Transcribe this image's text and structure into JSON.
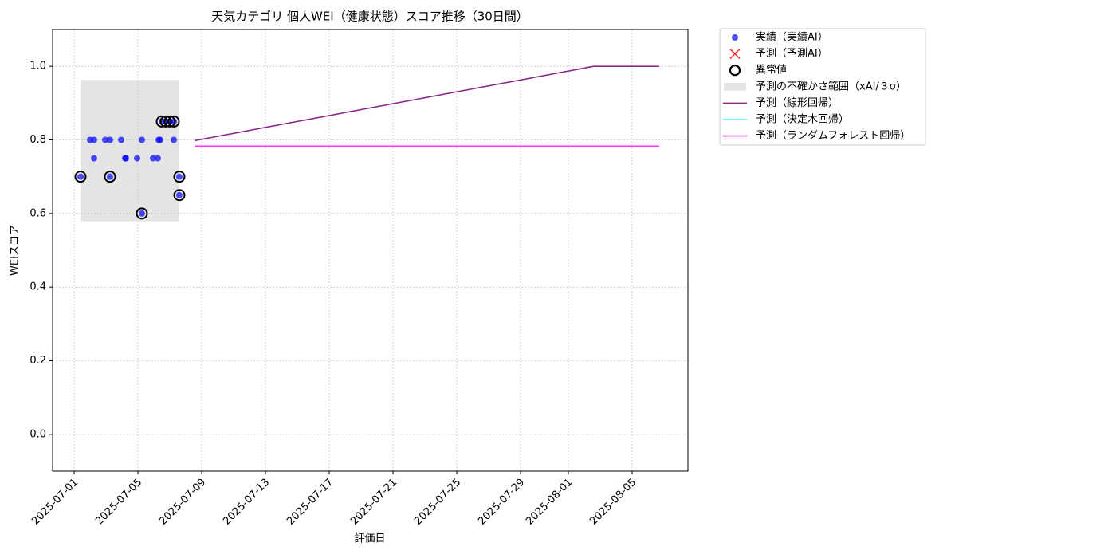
{
  "chart_data": {
    "type": "scatter",
    "title": "天気カテゴリ 個人WEI（健康状態）スコア推移（30日間）",
    "xlabel": "評価日",
    "ylabel": "WEIスコア",
    "xlim": [
      "2025-06-29T15:36",
      "2025-08-08T12:00"
    ],
    "xticks": [
      "2025-07-01",
      "2025-07-05",
      "2025-07-09",
      "2025-07-13",
      "2025-07-17",
      "2025-07-21",
      "2025-07-25",
      "2025-07-29",
      "2025-08-01",
      "2025-08-05"
    ],
    "ylim": [
      -0.1,
      1.1
    ],
    "yticks": [
      {
        "value": 0.0,
        "label": "0.0"
      },
      0.2,
      0.4,
      0.6,
      0.8,
      {
        "value": 1.0,
        "label": "1.0"
      }
    ],
    "grid": true,
    "legend": "outside-upper-right",
    "series": [
      {
        "name": "実績（実績AI）",
        "type": "scatter",
        "color": "#0000ff",
        "x": [
          "2025-07-01T09:36",
          "2025-07-02T00:00",
          "2025-07-02T06:00",
          "2025-07-02T06:00",
          "2025-07-02T22:48",
          "2025-07-03T06:00",
          "2025-07-03T06:00",
          "2025-07-03T22:48",
          "2025-07-04T04:48",
          "2025-07-04T06:00",
          "2025-07-04T22:48",
          "2025-07-05T06:00",
          "2025-07-05T06:00",
          "2025-07-05T22:48",
          "2025-07-06T06:00",
          "2025-07-06T07:12",
          "2025-07-06T09:36",
          "2025-07-06T12:00",
          "2025-07-06T18:00",
          "2025-07-07T00:00",
          "2025-07-07T06:00",
          "2025-07-07T06:00",
          "2025-07-07T14:24",
          "2025-07-07T14:24"
        ],
        "values": [
          0.7,
          0.8,
          0.8,
          0.75,
          0.8,
          0.8,
          0.7,
          0.8,
          0.75,
          0.75,
          0.75,
          0.8,
          0.6,
          0.75,
          0.75,
          0.8,
          0.8,
          0.85,
          0.85,
          0.85,
          0.85,
          0.8,
          0.7,
          0.65
        ]
      },
      {
        "name": "予測（予測AI）",
        "type": "cross",
        "color": "#ff3333",
        "x": [],
        "values": []
      },
      {
        "name": "異常値",
        "type": "ring",
        "color": "#000000",
        "x": [
          "2025-07-01T09:36",
          "2025-07-03T06:00",
          "2025-07-05T06:00",
          "2025-07-06T12:00",
          "2025-07-06T18:00",
          "2025-07-07T00:00",
          "2025-07-07T06:00",
          "2025-07-07T14:24",
          "2025-07-07T14:24"
        ],
        "values": [
          0.7,
          0.7,
          0.6,
          0.85,
          0.85,
          0.85,
          0.85,
          0.7,
          0.65
        ]
      },
      {
        "name": "予測の不確かさ範囲（xAI/３σ）",
        "type": "band",
        "color": "#bbbbbb",
        "x": [
          "2025-07-01T09:36",
          "2025-07-07T13:12"
        ],
        "lower": [
          0.579,
          0.579
        ],
        "upper": [
          0.963,
          0.963
        ]
      },
      {
        "name": "予測（線形回帰）",
        "type": "line",
        "color": "#8b2a8b",
        "x": [
          "2025-07-08T13:12",
          "2025-08-02T14:24",
          "2025-08-06T16:48"
        ],
        "values": [
          0.798,
          1.0,
          1.0
        ]
      },
      {
        "name": "予測（決定木回帰）",
        "type": "line",
        "color": "#33ffff",
        "x": [
          "2025-07-08T13:12",
          "2025-08-06T16:48"
        ],
        "values": [
          0.783,
          0.783
        ]
      },
      {
        "name": "予測（ランダムフォレスト回帰）",
        "type": "line",
        "color": "#ff33ff",
        "x": [
          "2025-07-08T13:12",
          "2025-08-06T16:48"
        ],
        "values": [
          0.783,
          0.783
        ]
      }
    ]
  }
}
